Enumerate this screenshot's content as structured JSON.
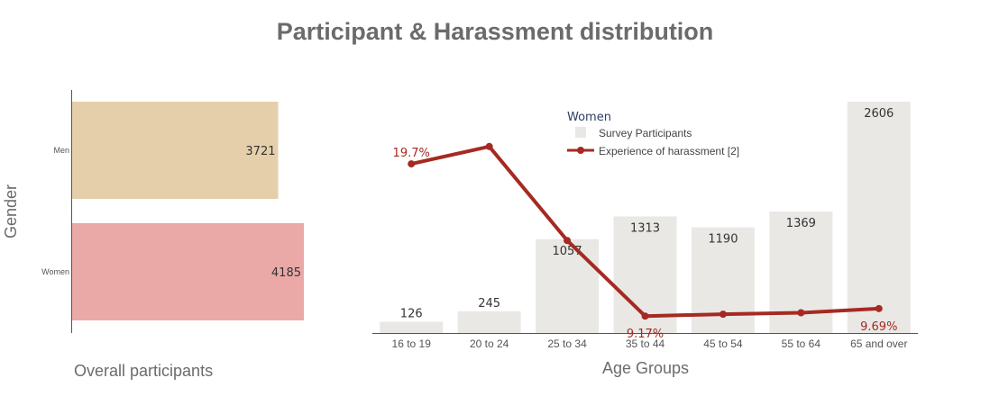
{
  "title": "Participant & Harassment distribution",
  "colors": {
    "men_bar": "#e5cfab",
    "women_bar": "#eaa9a7",
    "survey_bar": "#e9e8e5",
    "line": "#a52a22",
    "first_label": "#2a3f5f"
  },
  "chart_data": [
    {
      "type": "bar",
      "orientation": "horizontal",
      "categories": [
        "Men",
        "Women"
      ],
      "values": [
        3721,
        4185
      ],
      "data_labels": [
        "3721",
        "4185"
      ],
      "xlabel": "Overall participants",
      "ylabel": "Gender",
      "xlim": [
        0,
        4185
      ]
    },
    {
      "type": "bar",
      "categories": [
        "16 to 19",
        "20 to 24",
        "25 to 34",
        "35 to 44",
        "45 to 54",
        "55 to 64",
        "65 and over"
      ],
      "xlabel": "Age Groups",
      "legend": {
        "title": "Women",
        "placement": "top-center"
      },
      "series": [
        {
          "name": "Survey Participants",
          "type": "bar",
          "values": [
            126,
            245,
            1057,
            1313,
            1190,
            1369,
            2606
          ],
          "data_labels": [
            "126",
            "245",
            "1057",
            "1313",
            "1190",
            "1369",
            "2606"
          ]
        },
        {
          "name": "Experience of harassment [2]",
          "type": "line",
          "values": [
            19.7,
            20.9,
            14.4,
            9.17,
            9.3,
            9.4,
            9.69
          ],
          "unit": "%",
          "annotations": [
            {
              "index": 0,
              "text": "19.7%"
            },
            {
              "index": 3,
              "text": "9.17%"
            },
            {
              "index": 6,
              "text": "9.69%"
            }
          ],
          "ylim": [
            8,
            24
          ]
        }
      ],
      "ylim": [
        0,
        2606
      ]
    }
  ]
}
